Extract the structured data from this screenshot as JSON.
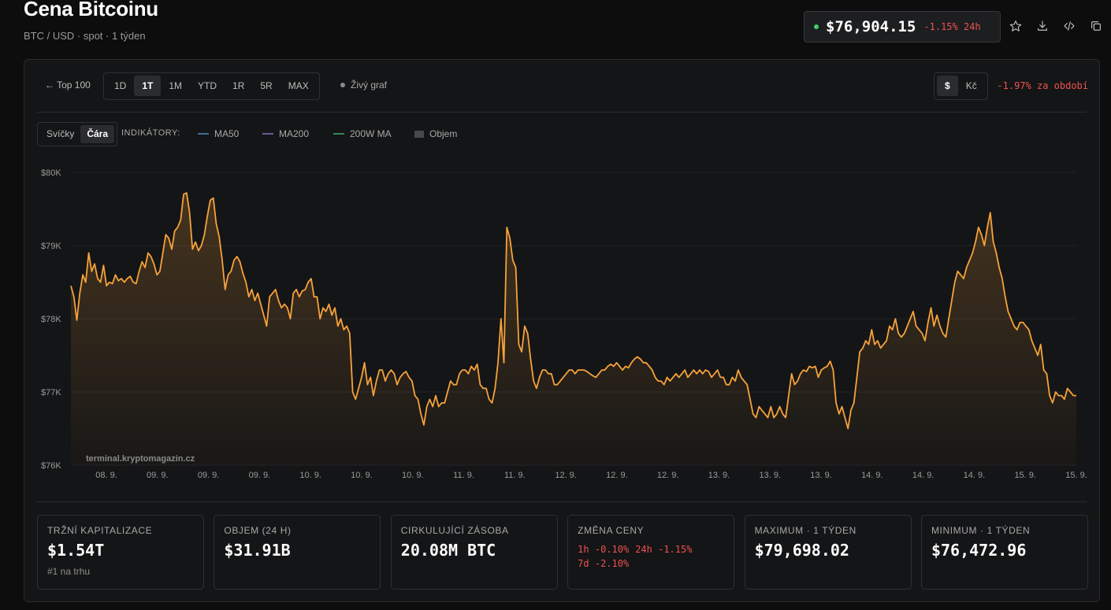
{
  "header": {
    "title": "Cena Bitcoinu",
    "subtitle": "BTC / USD · spot · 1 týden",
    "price": "$76,904.15",
    "change_24h": "-1.15% 24h"
  },
  "toolbar": {
    "back_label": "← Top 100",
    "ranges": [
      "1D",
      "1T",
      "1M",
      "YTD",
      "1R",
      "5R",
      "MAX"
    ],
    "active_range": "1T",
    "live_label": "Živý graf",
    "currencies": [
      "$",
      "Kč"
    ],
    "active_currency": "$",
    "period_change": "-1.97% za období"
  },
  "chart_controls": {
    "types": [
      "Svíčky",
      "Čára"
    ],
    "active_type": "Čára",
    "indicators_label": "INDIKÁTORY:",
    "indicators": [
      {
        "name": "MA50",
        "color": "#3a6f9c"
      },
      {
        "name": "MA200",
        "color": "#6a5a9a"
      },
      {
        "name": "200W MA",
        "color": "#2f8a5a"
      },
      {
        "name": "Objem",
        "color": "#48494d"
      }
    ]
  },
  "colors": {
    "line": "#f7a23b",
    "up": "#3ecf6a",
    "down": "#f05252",
    "background": "#0d0d0e"
  },
  "chart_data": {
    "type": "area",
    "title": "",
    "xlabel": "",
    "ylabel": "",
    "ylim": [
      76000,
      80000
    ],
    "y_ticks": [
      "$76K",
      "$77K",
      "$78K",
      "$79K",
      "$80K"
    ],
    "y_tick_values": [
      76000,
      77000,
      78000,
      79000,
      80000
    ],
    "x_tick_labels": [
      "08. 9.",
      "09. 9.",
      "09. 9.",
      "09. 9.",
      "10. 9.",
      "10. 9.",
      "10. 9.",
      "11. 9.",
      "11. 9.",
      "12. 9.",
      "12. 9.",
      "12. 9.",
      "13. 9.",
      "13. 9.",
      "13. 9.",
      "14. 9.",
      "14. 9.",
      "14. 9.",
      "15. 9.",
      "15. 9."
    ],
    "watermark": "terminal.kryptomagazin.cz",
    "series": [
      {
        "values": [
          78450,
          78300,
          77980,
          78350,
          78600,
          78500,
          78900,
          78650,
          78750,
          78550,
          78500,
          78730,
          78450,
          78500,
          78480,
          78600,
          78520,
          78550,
          78500,
          78550,
          78580,
          78500,
          78480,
          78650,
          78780,
          78700,
          78900,
          78850,
          78750,
          78600,
          78650,
          78900,
          79150,
          79100,
          78950,
          79200,
          79250,
          79350,
          79700,
          79720,
          79450,
          78950,
          79050,
          78930,
          79000,
          79150,
          79400,
          79620,
          79650,
          79300,
          79120,
          78800,
          78400,
          78600,
          78650,
          78800,
          78850,
          78780,
          78620,
          78500,
          78300,
          78400,
          78250,
          78350,
          78200,
          78050,
          77900,
          78300,
          78350,
          78400,
          78250,
          78150,
          78200,
          78150,
          78000,
          78350,
          78400,
          78300,
          78380,
          78400,
          78500,
          78550,
          78300,
          78300,
          78000,
          78150,
          78100,
          78200,
          78050,
          78150,
          77900,
          78000,
          77850,
          77900,
          77800,
          77000,
          76900,
          77050,
          77200,
          77400,
          77100,
          77200,
          76950,
          77150,
          77300,
          77300,
          77150,
          77250,
          77300,
          77250,
          77100,
          77200,
          77250,
          77280,
          77200,
          77150,
          76950,
          76900,
          76700,
          76550,
          76800,
          76900,
          76800,
          76950,
          76800,
          76850,
          76850,
          77000,
          77150,
          77100,
          77100,
          77250,
          77300,
          77300,
          77250,
          77350,
          77300,
          77380,
          77100,
          77050,
          77050,
          76900,
          76850,
          77050,
          77400,
          78000,
          77400,
          79250,
          79100,
          78800,
          78700,
          77650,
          77550,
          77900,
          77800,
          77450,
          77150,
          77050,
          77200,
          77300,
          77300,
          77250,
          77250,
          77100,
          77100,
          77150,
          77200,
          77250,
          77300,
          77300,
          77250,
          77300,
          77300,
          77300,
          77280,
          77250,
          77220,
          77200,
          77250,
          77300,
          77300,
          77350,
          77380,
          77350,
          77400,
          77350,
          77300,
          77350,
          77330,
          77400,
          77450,
          77480,
          77450,
          77400,
          77400,
          77350,
          77300,
          77200,
          77150,
          77150,
          77100,
          77200,
          77150,
          77200,
          77250,
          77200,
          77250,
          77300,
          77200,
          77250,
          77300,
          77250,
          77300,
          77250,
          77300,
          77280,
          77200,
          77250,
          77300,
          77200,
          77200,
          77100,
          77100,
          77200,
          77150,
          77300,
          77200,
          77150,
          77100,
          76900,
          76700,
          76650,
          76800,
          76750,
          76700,
          76650,
          76800,
          76650,
          76700,
          76800,
          76700,
          76650,
          76950,
          77250,
          77100,
          77150,
          77250,
          77300,
          77280,
          77350,
          77330,
          77350,
          77200,
          77300,
          77330,
          77350,
          77420,
          77300,
          76850,
          76700,
          76800,
          76650,
          76500,
          76750,
          76850,
          77200,
          77550,
          77600,
          77700,
          77650,
          77850,
          77650,
          77700,
          77600,
          77650,
          77700,
          77900,
          77850,
          78000,
          77800,
          77750,
          77800,
          77900,
          78000,
          78100,
          77900,
          77850,
          77800,
          77700,
          77950,
          78150,
          77900,
          78050,
          77900,
          77800,
          77750,
          78000,
          78250,
          78500,
          78650,
          78600,
          78550,
          78700,
          78800,
          78900,
          79050,
          79250,
          79150,
          79000,
          79250,
          79450,
          79050,
          78900,
          78700,
          78550,
          78300,
          78100,
          78000,
          77900,
          77850,
          77950,
          77950,
          77900,
          77850,
          77700,
          77600,
          77500,
          77650,
          77300,
          77250,
          76950,
          76850,
          77000,
          76950,
          76950,
          76900,
          77050,
          77000,
          76950,
          76950
        ]
      }
    ],
    "grid": true,
    "legend": "none"
  },
  "stats": [
    {
      "label": "TRŽNÍ KAPITALIZACE",
      "value": "$1.54T",
      "sub": "#1 na trhu"
    },
    {
      "label": "OBJEM (24 H)",
      "value": "$31.91B"
    },
    {
      "label": "CIRKULUJÍCÍ ZÁSOBA",
      "value": "20.08M BTC"
    },
    {
      "label": "ZMĚNA CENY",
      "changes": [
        "1h -0.10%",
        "24h -1.15%",
        "7d -2.10%"
      ]
    },
    {
      "label": "MAXIMUM · 1 TÝDEN",
      "value": "$79,698.02"
    },
    {
      "label": "MINIMUM · 1 TÝDEN",
      "value": "$76,472.96"
    }
  ]
}
